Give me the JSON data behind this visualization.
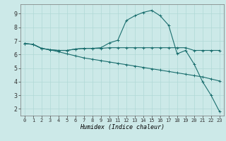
{
  "xlabel": "Humidex (Indice chaleur)",
  "xlim": [
    -0.5,
    23.5
  ],
  "ylim": [
    1.5,
    9.7
  ],
  "xticks": [
    0,
    1,
    2,
    3,
    4,
    5,
    6,
    7,
    8,
    9,
    10,
    11,
    12,
    13,
    14,
    15,
    16,
    17,
    18,
    19,
    20,
    21,
    22,
    23
  ],
  "yticks": [
    2,
    3,
    4,
    5,
    6,
    7,
    8,
    9
  ],
  "bg_color": "#cce9e8",
  "grid_color": "#b0d8d6",
  "line_color": "#1a6e6e",
  "line1_x": [
    0,
    1,
    2,
    3,
    4,
    5,
    6,
    7,
    8,
    9,
    10,
    11,
    12,
    13,
    14,
    15,
    16,
    17,
    18,
    19,
    20,
    21,
    22,
    23
  ],
  "line1_y": [
    6.8,
    6.75,
    6.45,
    6.35,
    6.3,
    6.3,
    6.4,
    6.45,
    6.45,
    6.45,
    6.5,
    6.5,
    6.5,
    6.5,
    6.5,
    6.5,
    6.5,
    6.5,
    6.5,
    6.5,
    6.3,
    6.3,
    6.3,
    6.3
  ],
  "line2_x": [
    0,
    1,
    2,
    3,
    4,
    5,
    6,
    7,
    8,
    9,
    10,
    11,
    12,
    13,
    14,
    15,
    16,
    17,
    18,
    19,
    20,
    21,
    22,
    23
  ],
  "line2_y": [
    6.8,
    6.75,
    6.45,
    6.35,
    6.3,
    6.3,
    6.4,
    6.45,
    6.45,
    6.5,
    6.85,
    7.05,
    8.5,
    8.85,
    9.1,
    9.25,
    8.85,
    8.15,
    6.05,
    6.3,
    5.3,
    4.0,
    3.0,
    1.8
  ],
  "line3_x": [
    0,
    1,
    2,
    3,
    4,
    5,
    6,
    7,
    8,
    9,
    10,
    11,
    12,
    13,
    14,
    15,
    16,
    17,
    18,
    19,
    20,
    21,
    22,
    23
  ],
  "line3_y": [
    6.8,
    6.75,
    6.45,
    6.35,
    6.2,
    6.05,
    5.9,
    5.75,
    5.65,
    5.55,
    5.45,
    5.35,
    5.25,
    5.15,
    5.05,
    4.95,
    4.85,
    4.75,
    4.65,
    4.55,
    4.45,
    4.35,
    4.2,
    4.05
  ]
}
